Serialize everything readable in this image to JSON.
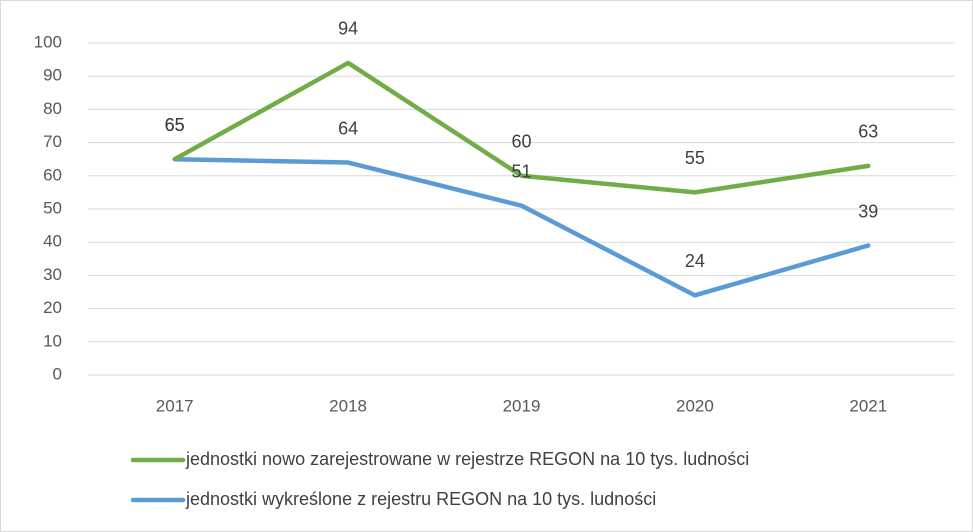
{
  "chart_data": {
    "type": "line",
    "categories": [
      "2017",
      "2018",
      "2019",
      "2020",
      "2021"
    ],
    "series": [
      {
        "name": "jednostki nowo zarejestrowane w rejestrze REGON na 10 tys. ludności",
        "color": "#70ad47",
        "values": [
          65,
          94,
          60,
          55,
          63
        ]
      },
      {
        "name": "jednostki wykreślone z rejestru REGON na 10 tys. ludności",
        "color": "#5b9bd5",
        "values": [
          65,
          64,
          51,
          24,
          39
        ]
      }
    ],
    "ylim": [
      0,
      100
    ],
    "yticks": [
      0,
      10,
      20,
      30,
      40,
      50,
      60,
      70,
      80,
      90,
      100
    ],
    "grid": true,
    "legend": "bottom"
  }
}
